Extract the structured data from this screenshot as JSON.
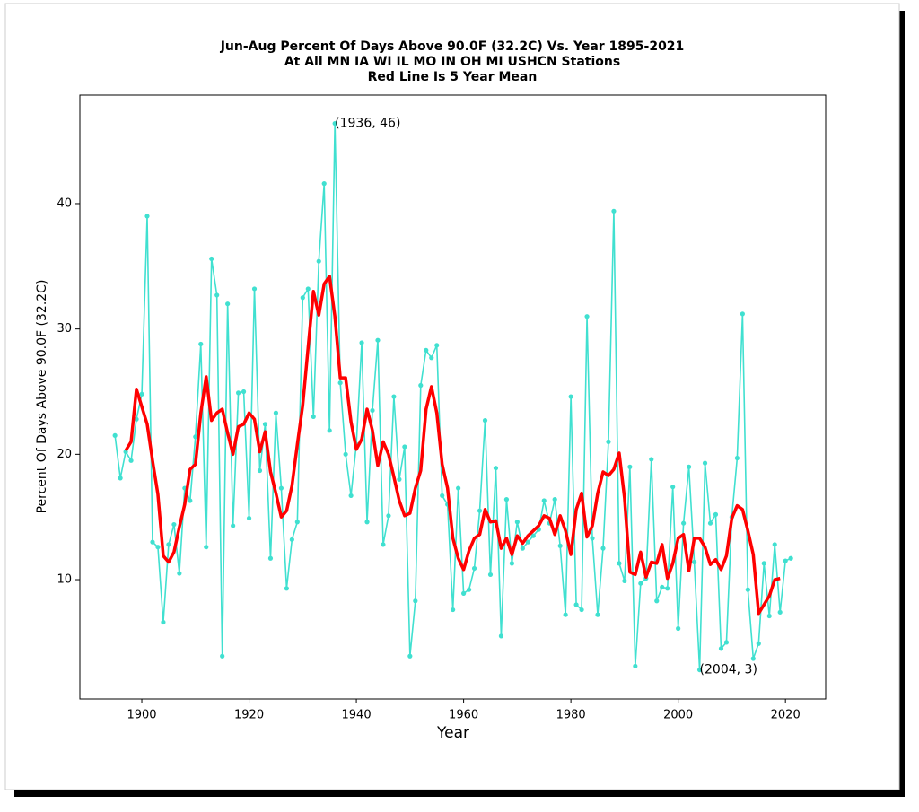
{
  "chart_data": {
    "type": "line",
    "title": [
      "Jun-Aug Percent Of Days Above 90.0F (32.2C) Vs. Year 1895-2021",
      "At All MN IA WI IL MO IN OH MI USHCN Stations",
      "Red Line Is 5 Year Mean"
    ],
    "x_label": "Year",
    "y_label": "Percent Of Days Above 90.0F (32.2C)",
    "x": [
      1895,
      1896,
      1897,
      1898,
      1899,
      1900,
      1901,
      1902,
      1903,
      1904,
      1905,
      1906,
      1907,
      1908,
      1909,
      1910,
      1911,
      1912,
      1913,
      1914,
      1915,
      1916,
      1917,
      1918,
      1919,
      1920,
      1921,
      1922,
      1923,
      1924,
      1925,
      1926,
      1927,
      1928,
      1929,
      1930,
      1931,
      1932,
      1933,
      1934,
      1935,
      1936,
      1937,
      1938,
      1939,
      1940,
      1941,
      1942,
      1943,
      1944,
      1945,
      1946,
      1947,
      1948,
      1949,
      1950,
      1951,
      1952,
      1953,
      1954,
      1955,
      1956,
      1957,
      1958,
      1959,
      1960,
      1961,
      1962,
      1963,
      1964,
      1965,
      1966,
      1967,
      1968,
      1969,
      1970,
      1971,
      1972,
      1973,
      1974,
      1975,
      1976,
      1977,
      1978,
      1979,
      1980,
      1981,
      1982,
      1983,
      1984,
      1985,
      1986,
      1987,
      1988,
      1989,
      1990,
      1991,
      1992,
      1993,
      1994,
      1995,
      1996,
      1997,
      1998,
      1999,
      2000,
      2001,
      2002,
      2003,
      2004,
      2005,
      2006,
      2007,
      2008,
      2009,
      2010,
      2011,
      2012,
      2013,
      2014,
      2015,
      2016,
      2017,
      2018,
      2019,
      2020,
      2021
    ],
    "series": [
      {
        "color": "#40e0d0",
        "markers": true,
        "values": [
          21.5,
          18.1,
          20.2,
          19.5,
          22.8,
          24.8,
          39,
          13,
          12.6,
          6.6,
          12.8,
          14.4,
          10.5,
          17.3,
          16.3,
          21.4,
          28.8,
          12.6,
          35.6,
          32.7,
          3.9,
          32,
          14.3,
          24.9,
          25,
          14.9,
          33.2,
          18.7,
          22.4,
          11.7,
          23.3,
          17.3,
          9.3,
          13.2,
          14.6,
          32.5,
          33.2,
          23,
          35.4,
          41.6,
          21.9,
          46.4,
          25.7,
          20,
          16.7,
          20.8,
          28.9,
          14.6,
          23.5,
          29.1,
          12.8,
          15.1,
          24.6,
          18,
          20.6,
          3.9,
          8.3,
          25.5,
          28.3,
          27.7,
          28.7,
          16.7,
          16,
          7.6,
          17.3,
          8.9,
          9.2,
          10.9,
          15.5,
          22.7,
          10.4,
          18.9,
          5.5,
          16.4,
          11.3,
          14.6,
          12.5,
          13,
          13.5,
          14,
          16.3,
          14.5,
          16.4,
          12.7,
          7.2,
          24.6,
          8,
          7.6,
          31,
          13.3,
          7.2,
          12.5,
          21,
          39.4,
          11.3,
          9.9,
          19,
          3.1,
          9.7,
          10.1,
          19.6,
          8.3,
          9.4,
          9.3,
          17.4,
          6.1,
          14.5,
          19,
          11.4,
          2.8,
          19.3,
          14.5,
          15.2,
          4.5,
          5,
          15,
          19.7,
          31.2,
          9.2,
          3.7,
          4.9,
          11.3,
          7.1,
          12.8,
          7.4,
          11.5,
          11.7
        ]
      },
      {
        "color": "#ff0000",
        "markers": false,
        "values": [
          null,
          null,
          20.3,
          21,
          25.2,
          23.8,
          22.4,
          19.5,
          16.8,
          11.9,
          11.4,
          12.2,
          14.2,
          16,
          18.8,
          19.2,
          23.3,
          26.2,
          22.7,
          23.3,
          23.6,
          21.7,
          20,
          22.2,
          22.4,
          23.3,
          22.8,
          20.2,
          21.8,
          18.6,
          16.9,
          15,
          15.5,
          17.5,
          20.8,
          23.9,
          28.5,
          33,
          31.1,
          33.6,
          34.2,
          31,
          26.1,
          26.1,
          22.6,
          20.4,
          21.2,
          23.6,
          21.9,
          19.1,
          21,
          20,
          18.2,
          16.3,
          15.1,
          15.3,
          17.3,
          18.7,
          23.6,
          25.4,
          23.3,
          19.2,
          17.3,
          13.3,
          11.7,
          10.8,
          12.3,
          13.3,
          13.6,
          15.6,
          14.6,
          14.7,
          12.5,
          13.3,
          12,
          13.5,
          12.9,
          13.5,
          13.9,
          14.3,
          15.1,
          14.9,
          13.6,
          15.1,
          13.9,
          12,
          15.6,
          16.9,
          13.4,
          14.3,
          16.9,
          18.6,
          18.3,
          18.8,
          20.1,
          16.5,
          10.6,
          10.4,
          12.2,
          10.2,
          11.4,
          11.3,
          12.8,
          10.1,
          11.3,
          13.3,
          13.6,
          10.7,
          13.3,
          13.3,
          12.6,
          11.2,
          11.6,
          10.8,
          11.9,
          14.9,
          15.9,
          15.6,
          13.9,
          12,
          7.3,
          8,
          8.7,
          10,
          10.1,
          null,
          null
        ]
      }
    ],
    "annotations": [
      {
        "text": "(1936, 46)",
        "x": 1936,
        "y": 46.4
      },
      {
        "text": "(2004, 3)",
        "x": 2004,
        "y": 2.8
      }
    ],
    "xlim": [
      1888.45,
      2027.5
    ],
    "ylim": [
      0.48,
      48.66
    ],
    "xticks": [
      1900,
      1920,
      1940,
      1960,
      1980,
      2000,
      2020
    ],
    "yticks": [
      10,
      20,
      30,
      40
    ]
  }
}
